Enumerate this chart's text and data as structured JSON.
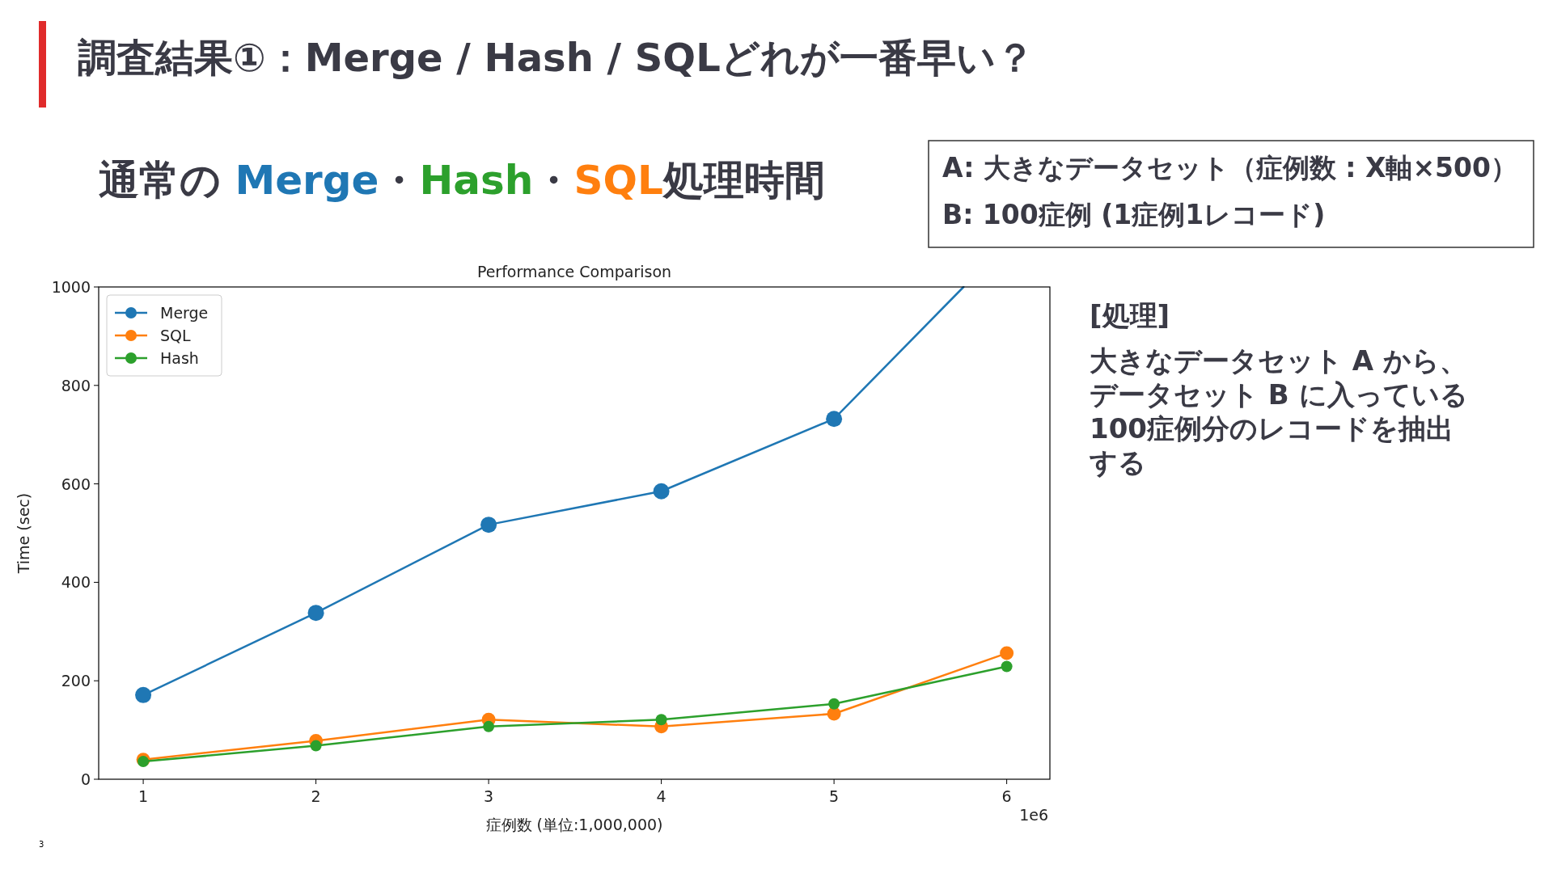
{
  "chart_data": {
    "type": "line",
    "title": "Performance Comparison",
    "subtitle": "通常の Merge・Hash・SQL処理時間",
    "xlabel": "症例数 (単位:1,000,000)",
    "ylabel": "Time (sec)",
    "annotations": [
      "調査結果①：Merge / Hash / SQLどれが一番早い？",
      "A: 大きなデータセット（症例数 : X軸×500）",
      "B:  100症例 (1症例1レコード)",
      "[処理]",
      "大きなデータセット A から、",
      "データセット B に入っている",
      "100症例分のレコードを抽出",
      "する",
      "1e6",
      "3"
    ],
    "x": [
      1,
      2,
      3,
      4,
      5,
      6
    ],
    "series": [
      {
        "name": "Merge",
        "color": "#1f77b4",
        "x": [
          1,
          2,
          3,
          4,
          5,
          5.75
        ],
        "values": [
          171,
          338,
          517,
          585,
          732,
          1000
        ]
      },
      {
        "name": "SQL",
        "color": "#ff7f0e",
        "values": [
          40,
          78,
          121,
          107,
          133,
          256
        ]
      },
      {
        "name": "Hash",
        "color": "#2ca02c",
        "values": [
          36,
          68,
          107,
          121,
          153,
          229
        ]
      }
    ],
    "xlim": [
      0.742,
      6.25
    ],
    "xticks": [
      1,
      2,
      3,
      4,
      5,
      6
    ],
    "ylim": [
      0,
      1000
    ],
    "yticks": [
      0,
      200,
      400,
      600,
      800,
      1000
    ],
    "grid": false,
    "legend": "top left",
    "marker": "circle",
    "line_style": "solid"
  }
}
